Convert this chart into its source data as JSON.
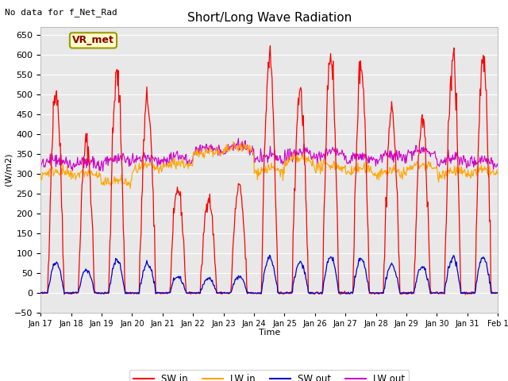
{
  "title": "Short/Long Wave Radiation",
  "xlabel": "Time",
  "ylabel": "(W/m2)",
  "top_left_text": "No data for f_Net_Rad",
  "legend_label_text": "VR_met",
  "ylim": [
    -50,
    670
  ],
  "yticks": [
    -50,
    0,
    50,
    100,
    150,
    200,
    250,
    300,
    350,
    400,
    450,
    500,
    550,
    600,
    650
  ],
  "series_colors": {
    "SW_in": "#ff0000",
    "LW_in": "#ffa500",
    "SW_out": "#0000cc",
    "LW_out": "#cc00cc"
  },
  "legend_labels": [
    "SW in",
    "LW in",
    "SW out",
    "LW out"
  ],
  "n_days": 15,
  "background_color": "#e8e8e8",
  "fig_background": "#ffffff",
  "xtick_labels": [
    "Jan 17",
    "Jan 18",
    "Jan 19",
    "Jan 20",
    "Jan 21",
    "Jan 22",
    "Jan 23",
    "Jan 24",
    "Jan 25",
    "Jan 26",
    "Jan 27",
    "Jan 28",
    "Jan 29",
    "Jan 30",
    "Jan 31",
    "Feb 1"
  ],
  "sw_in_peaks": [
    510,
    380,
    545,
    485,
    260,
    240,
    265,
    590,
    510,
    605,
    575,
    460,
    435,
    590,
    590
  ],
  "lw_in_base": [
    295,
    290,
    270,
    305,
    315,
    345,
    355,
    300,
    325,
    310,
    300,
    295,
    310,
    295,
    295
  ],
  "lw_out_base": [
    320,
    315,
    325,
    325,
    330,
    350,
    355,
    330,
    340,
    340,
    330,
    330,
    345,
    325,
    320
  ]
}
